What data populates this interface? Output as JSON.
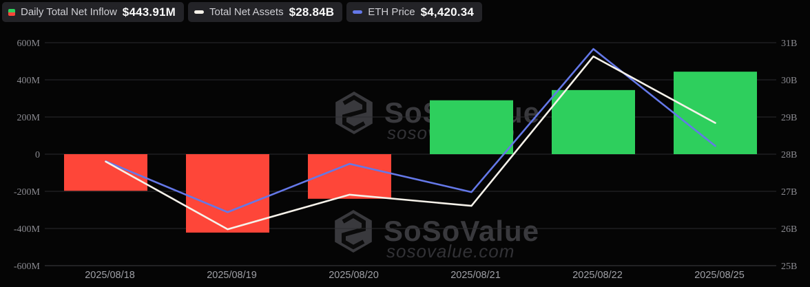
{
  "legend": {
    "items": [
      {
        "label": "Daily Total Net Inflow",
        "value": "$443.91M",
        "icon": "inflow-split-square-icon",
        "icon_colors": {
          "top": "#2ecf5d",
          "bottom": "#fe4639"
        }
      },
      {
        "label": "Total Net Assets",
        "value": "$28.84B",
        "icon": "white-dash-icon",
        "color": "#f6f2ea"
      },
      {
        "label": "ETH Price",
        "value": "$4,420.34",
        "icon": "blue-dash-icon",
        "color": "#6478e8"
      }
    ]
  },
  "watermark": {
    "title": "SoSoValue",
    "url": "sosovalue.com"
  },
  "chart_data": {
    "type": "bar",
    "subtype": "bar+line combo",
    "categories": [
      "2025/08/18",
      "2025/08/19",
      "2025/08/20",
      "2025/08/21",
      "2025/08/22",
      "2025/08/25"
    ],
    "series": [
      {
        "name": "Daily Total Net Inflow",
        "type": "bar",
        "axis": "left",
        "unit": "USD millions",
        "values": [
          -197,
          -422,
          -240,
          290,
          345,
          443.91
        ],
        "color_positive": "#2ecf5d",
        "color_negative": "#fe4639"
      },
      {
        "name": "Total Net Assets",
        "type": "line",
        "axis": "right",
        "unit": "USD billions",
        "values": [
          27.8,
          25.98,
          26.91,
          26.61,
          30.63,
          28.84
        ],
        "color": "#f6f2ea"
      },
      {
        "name": "ETH Price",
        "type": "line",
        "axis": "hidden",
        "latest_display_value": "$4,420.34",
        "values_on_right_axis_scale": [
          27.81,
          26.44,
          27.74,
          26.98,
          30.83,
          28.22
        ],
        "color": "#6478e8"
      }
    ],
    "left_axis": {
      "min": -600,
      "max": 600,
      "unit": "M",
      "tick_labels": [
        "600M",
        "400M",
        "200M",
        "0",
        "-200M",
        "-400M",
        "-600M"
      ]
    },
    "right_axis": {
      "min": 25,
      "max": 31,
      "unit": "B",
      "tick_labels": [
        "31B",
        "30B",
        "29B",
        "28B",
        "27B",
        "26B",
        "25B"
      ]
    },
    "grid": "horizontal",
    "legend_position": "top-left",
    "colors": {
      "background": "#050505",
      "grid_line": "#2c2c2f",
      "axis_line": "#3e3e43",
      "y_tick_text": "#8a8a90",
      "x_tick_text": "#9fa0a6",
      "watermark": "#39393d"
    }
  }
}
